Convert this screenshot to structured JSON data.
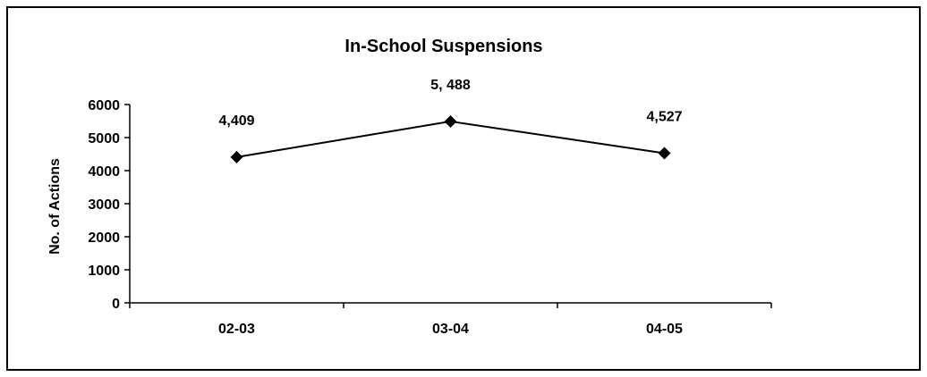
{
  "chart_data": {
    "type": "line",
    "title": "In-School Suspensions",
    "xlabel": "",
    "ylabel": "No. of Actions",
    "categories": [
      "02-03",
      "03-04",
      "04-05"
    ],
    "series": [
      {
        "values": [
          4409,
          5488,
          4527
        ],
        "data_labels": [
          "4,409",
          "5, 488",
          "4,527"
        ],
        "marker": "diamond",
        "color": "#000000"
      }
    ],
    "ylim": [
      0,
      6000
    ],
    "yticks": [
      0,
      1000,
      2000,
      3000,
      4000,
      5000,
      6000
    ],
    "grid": false,
    "legend": "none"
  }
}
